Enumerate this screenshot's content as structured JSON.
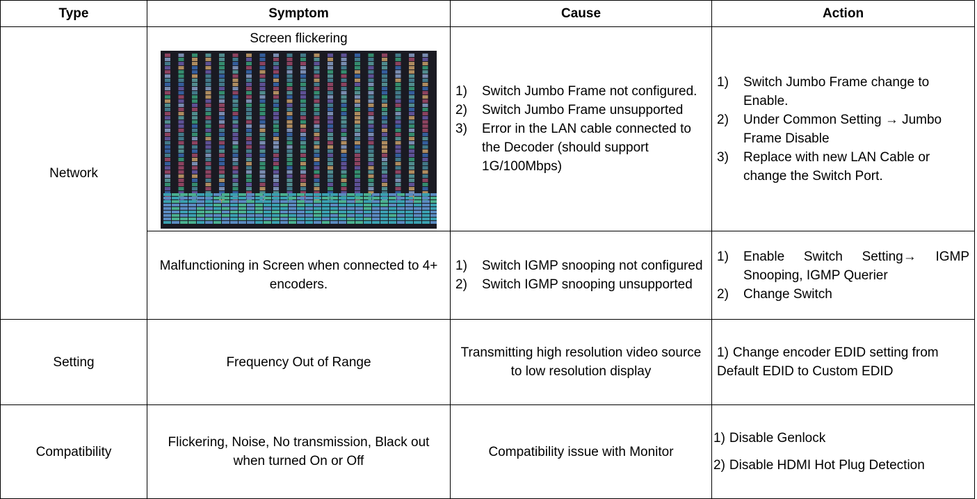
{
  "table": {
    "headers": [
      "Type",
      "Symptom",
      "Cause",
      "Action"
    ],
    "rows": [
      {
        "type": "Network",
        "symptom": "Screen flickering",
        "cause": [
          {
            "marker": "1)",
            "text": "Switch Jumbo Frame not configured."
          },
          {
            "marker": "2)",
            "text": "Switch Jumbo Frame unsupported"
          },
          {
            "marker": "3)",
            "text": "Error in the LAN cable connected to the Decoder (should support 1G/100Mbps)"
          }
        ],
        "action": [
          {
            "marker": "1)",
            "text": "Switch Jumbo Frame change to Enable."
          },
          {
            "marker": "2)",
            "text": "Under Common Setting → Jumbo Frame Disable"
          },
          {
            "marker": "3)",
            "text": "Replace with new LAN Cable or change the Switch Port."
          }
        ]
      },
      {
        "symptom": "Malfunctioning in Screen when connected to 4+ encoders.",
        "cause": [
          {
            "marker": "1)",
            "text": "Switch IGMP snooping not configured"
          },
          {
            "marker": "2)",
            "text": "Switch IGMP snooping unsupported"
          }
        ],
        "action": [
          {
            "marker": "1)",
            "text": "Enable Switch Setting→ IGMP Snooping, IGMP Querier"
          },
          {
            "marker": "2)",
            "text": "Change Switch"
          }
        ]
      },
      {
        "type": "Setting",
        "symptom": "Frequency Out of Range",
        "cause": "Transmitting high resolution video source to low resolution display",
        "action": [
          {
            "marker": "1)",
            "text": "Change encoder EDID setting from Default EDID to Custom EDID"
          }
        ]
      },
      {
        "type": "Compatibility",
        "symptom": "Flickering, Noise, No transmission, Black out when turned On or Off",
        "cause": "Compatibility issue with Monitor",
        "action": [
          {
            "marker": "1)",
            "text": "Disable Genlock"
          },
          {
            "marker": "2)",
            "text": "Disable HDMI Hot Plug Detection"
          }
        ]
      }
    ]
  }
}
